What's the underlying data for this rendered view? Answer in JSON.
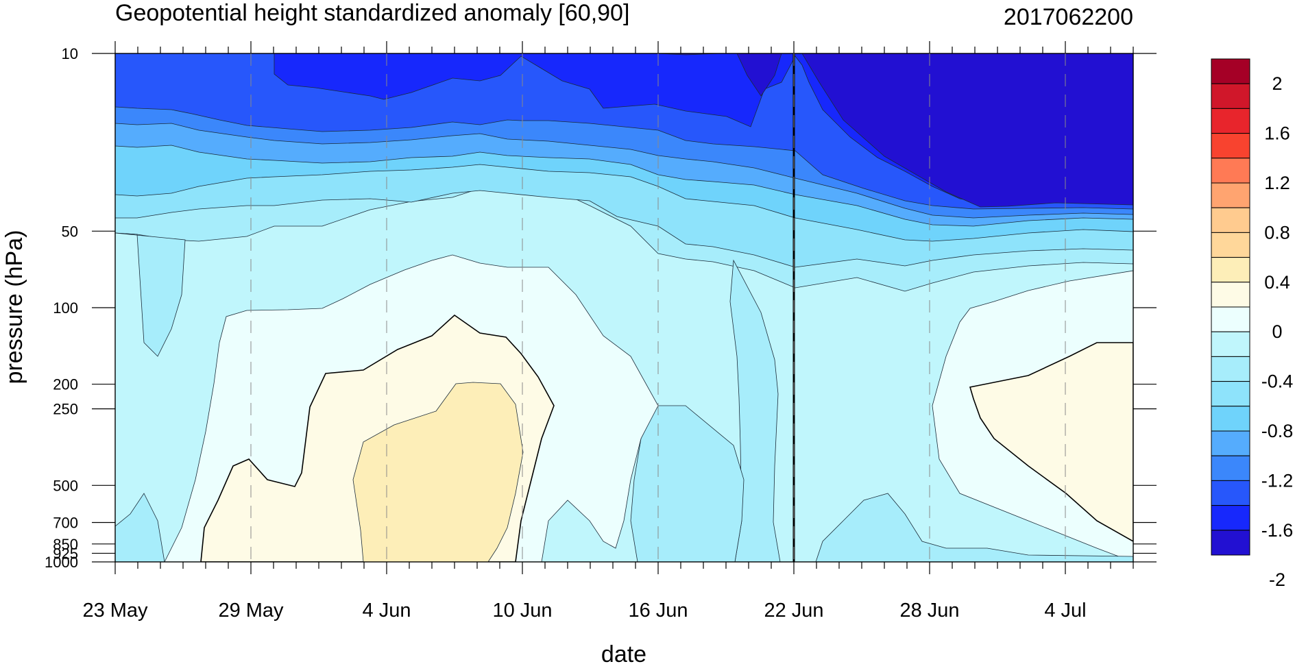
{
  "chart_data": {
    "type": "heatmap",
    "subtype": "filled-contour",
    "title": "Geopotential height standardized anomaly [60,90]",
    "stamp": "2017062200",
    "xlabel": "date",
    "ylabel": "pressure (hPa)",
    "x_range": [
      "2017-05-23",
      "2017-07-07"
    ],
    "x_ticks": [
      "23 May",
      "29 May",
      "4 Jun",
      "10 Jun",
      "16 Jun",
      "22 Jun",
      "28 Jun",
      "4 Jul"
    ],
    "y_ticks": [
      "10",
      "50",
      "100",
      "200",
      "250",
      "500",
      "700",
      "850",
      "925",
      "1000"
    ],
    "y_tick_values": [
      10,
      50,
      100,
      200,
      250,
      500,
      700,
      850,
      925,
      1000
    ],
    "y_scale": "log",
    "y_direction": "decreasing-upward",
    "vertical_marker_date": "2017-06-22",
    "colorbar": {
      "labels": [
        "2",
        "1.6",
        "1.2",
        "0.8",
        "0.4",
        "0",
        "-0.4",
        "-0.8",
        "-1.2",
        "-1.6",
        "-2"
      ],
      "colors": [
        "#a50026",
        "#d0172a",
        "#e8252c",
        "#f8432f",
        "#ff7a55",
        "#ffa470",
        "#ffcb8f",
        "#ffd79a",
        "#fdeeb8",
        "#fefbe6",
        "#ecfffe",
        "#c0f6fc",
        "#a7edfb",
        "#8ee3fb",
        "#6fd3fb",
        "#55acfd",
        "#3b87fb",
        "#2757fb",
        "#1728fc",
        "#2210d2"
      ]
    },
    "fill_colors": {
      "above_0.4": "#fdeeb8",
      "0_to_0.4": "#fefbe6",
      "-0.2_to_0": "#ecfffe",
      "-0.4_to_-0.2": "#c0f6fc",
      "-0.6_to_-0.4": "#a7edfb",
      "-0.8_to_-0.6": "#8ee3fb",
      "-1_to_-0.8": "#6fd3fb",
      "-1.2_to_-1": "#55acfd",
      "-1.4_to_-1.2": "#3b87fb",
      "-1.8_to_-1.4": "#2757fb",
      "-2_to_-1.8": "#1728fc",
      "below_-2": "#2210d2"
    }
  }
}
